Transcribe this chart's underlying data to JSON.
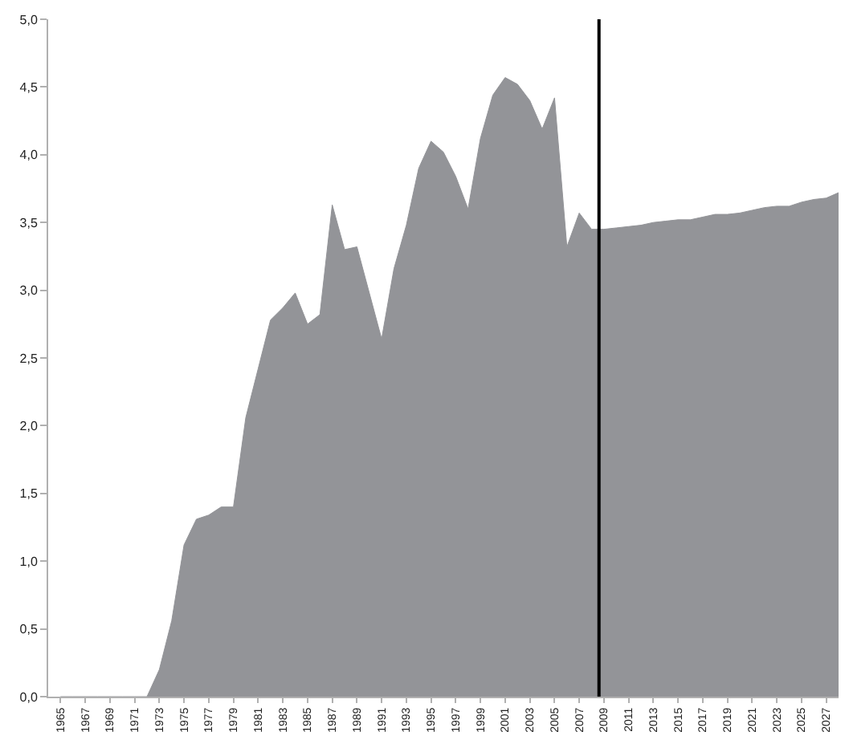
{
  "chart_data": {
    "type": "area",
    "color": "#939498",
    "x": [
      1965,
      1966,
      1967,
      1968,
      1969,
      1970,
      1971,
      1972,
      1973,
      1974,
      1975,
      1976,
      1977,
      1978,
      1979,
      1980,
      1981,
      1982,
      1983,
      1984,
      1985,
      1986,
      1987,
      1988,
      1989,
      1990,
      1991,
      1992,
      1993,
      1994,
      1995,
      1996,
      1997,
      1998,
      1999,
      2000,
      2001,
      2002,
      2003,
      2004,
      2005,
      2006,
      2007,
      2008,
      2009,
      2010,
      2011,
      2012,
      2013,
      2014,
      2015,
      2016,
      2017,
      2018,
      2019,
      2020,
      2021,
      2022,
      2023,
      2024,
      2025,
      2026,
      2027,
      2028
    ],
    "values": [
      0,
      0,
      0,
      0,
      0,
      0,
      0,
      0,
      0.2,
      0.56,
      1.12,
      1.31,
      1.34,
      1.4,
      1.4,
      2.06,
      2.42,
      2.78,
      2.87,
      2.98,
      2.75,
      2.82,
      3.63,
      3.3,
      3.32,
      2.98,
      2.64,
      3.16,
      3.48,
      3.9,
      4.1,
      4.02,
      3.84,
      3.6,
      4.12,
      4.44,
      4.57,
      4.52,
      4.4,
      4.19,
      4.42,
      3.32,
      3.57,
      3.45,
      3.45,
      3.46,
      3.47,
      3.48,
      3.5,
      3.51,
      3.52,
      3.52,
      3.54,
      3.56,
      3.56,
      3.57,
      3.59,
      3.61,
      3.62,
      3.62,
      3.65,
      3.67,
      3.68,
      3.72
    ],
    "xlim": [
      1964,
      2028
    ],
    "xticks": [
      1965,
      1967,
      1969,
      1971,
      1973,
      1975,
      1977,
      1979,
      1981,
      1983,
      1985,
      1987,
      1989,
      1991,
      1993,
      1995,
      1997,
      1999,
      2001,
      2003,
      2005,
      2007,
      2009,
      2011,
      2013,
      2015,
      2017,
      2019,
      2021,
      2023,
      2025,
      2027
    ],
    "ylim": [
      0,
      5
    ],
    "yticks": [
      {
        "value": 0,
        "label": "0,0"
      },
      {
        "value": 0.5,
        "label": "0,5"
      },
      {
        "value": 1,
        "label": "1,0"
      },
      {
        "value": 1.5,
        "label": "1,5"
      },
      {
        "value": 2,
        "label": "2,0"
      },
      {
        "value": 2.5,
        "label": "2,5"
      },
      {
        "value": 3,
        "label": "3,0"
      },
      {
        "value": 3.5,
        "label": "3,5"
      },
      {
        "value": 4,
        "label": "4,0"
      },
      {
        "value": 4.5,
        "label": "4,5"
      },
      {
        "value": 5,
        "label": "5,0"
      }
    ],
    "ref_lines": [
      {
        "axis": "x",
        "value": 2008.6,
        "color": "#000000"
      }
    ],
    "legend": false
  }
}
